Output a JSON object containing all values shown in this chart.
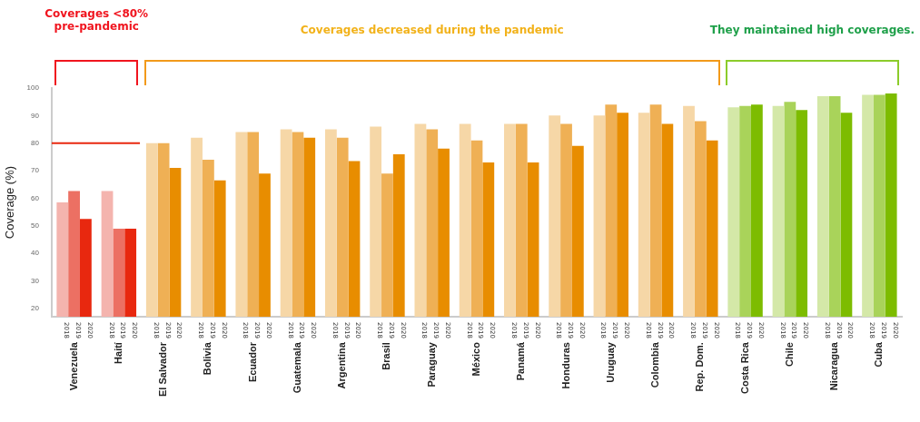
{
  "chart_data": {
    "type": "bar",
    "ylabel": "Coverage (%)",
    "annotations": [
      "Coverages <80%\npre-pandemic",
      "Coverages decreased during the pandemic",
      "They maintained high coverages."
    ],
    "categories": [
      "Venezuela",
      "Haití",
      "El Salvador",
      "Bolivia",
      "Ecuador",
      "Guatemala",
      "Argentina",
      "Brasil",
      "Paraguay",
      "México",
      "Panamá",
      "Honduras",
      "Uruguay",
      "Colombia",
      "Rep. Dom.",
      "Costa Rica",
      "Chile",
      "Nicaragua",
      "Cuba"
    ],
    "series": [
      {
        "name": "2018",
        "colors": [
          "#f4b4ae",
          "#f4b4ae",
          "#f6d7a7",
          "#f6d7a7",
          "#f6d7a7",
          "#f6d7a7",
          "#f6d7a7",
          "#f6d7a7",
          "#f6d7a7",
          "#f6d7a7",
          "#f6d7a7",
          "#f6d7a7",
          "#f6d7a7",
          "#f6d7a7",
          "#f6d7a7",
          "#d4e8a8",
          "#d4e8a8",
          "#d4e8a8",
          "#d4e8a8"
        ],
        "values": [
          58.5,
          62.6,
          80,
          82,
          84,
          85,
          85,
          86,
          87,
          87,
          87,
          90,
          90,
          91,
          93.5,
          93,
          93.5,
          97,
          97.5
        ]
      },
      {
        "name": "2019",
        "colors": [
          "#ec7063",
          "#ec7063",
          "#efb055",
          "#efb055",
          "#efb055",
          "#efb055",
          "#efb055",
          "#efb055",
          "#efb055",
          "#efb055",
          "#efb055",
          "#efb055",
          "#efb055",
          "#efb055",
          "#efb055",
          "#a9d35a",
          "#a9d35a",
          "#a9d35a",
          "#a9d35a"
        ],
        "values": [
          62.6,
          49,
          80,
          74,
          84,
          84,
          82,
          69,
          85,
          81,
          87,
          87,
          94,
          94,
          88,
          93.5,
          95,
          97,
          97.5
        ]
      },
      {
        "name": "2020",
        "colors": [
          "#e8280f",
          "#e8280f",
          "#e88d00",
          "#e88d00",
          "#e88d00",
          "#e88d00",
          "#e88d00",
          "#e88d00",
          "#e88d00",
          "#e88d00",
          "#e88d00",
          "#e88d00",
          "#e88d00",
          "#e88d00",
          "#e88d00",
          "#7dbc00",
          "#7dbc00",
          "#7dbc00",
          "#7dbc00"
        ],
        "values": [
          52.5,
          49,
          71,
          66.5,
          69,
          82,
          73.5,
          76,
          78,
          73,
          73,
          79,
          91,
          87,
          81,
          94,
          92,
          91,
          98
        ]
      }
    ],
    "ylim": [
      17,
      100
    ],
    "yticks": [
      20,
      30,
      40,
      50,
      60,
      70,
      80,
      90,
      100
    ],
    "ref_lines": [
      {
        "axis": "y",
        "value": 80,
        "color": "#e8280f"
      }
    ],
    "grid": false,
    "legend": false
  }
}
